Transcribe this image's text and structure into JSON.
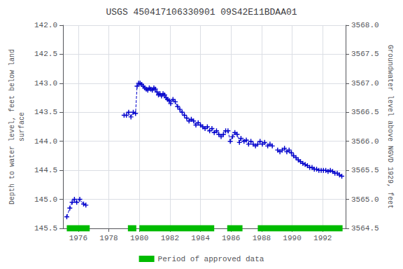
{
  "chart_data": {
    "type": "line",
    "title": "USGS 450417106330901 09S42E11BDAA01",
    "ylabel": "Depth to water level, feet below land\nsurface",
    "y2label": "Groundwater level above NGVD 1929, feet",
    "xlim": [
      1975.0,
      1993.5
    ],
    "xticks": [
      1976,
      1978,
      1980,
      1982,
      1984,
      1986,
      1988,
      1990,
      1992
    ],
    "ylim": [
      145.5,
      142.0
    ],
    "yticks": [
      {
        "value": 142.0,
        "label": "142.0"
      },
      142.5,
      {
        "value": 143.0,
        "label": "143.0"
      },
      143.5,
      {
        "value": 144.0,
        "label": "144.0"
      },
      144.5,
      {
        "value": 145.0,
        "label": "145.0"
      },
      145.5
    ],
    "y2lim": [
      3564.5,
      3568.0
    ],
    "y2ticks": [
      3564.5,
      {
        "value": 3565.0,
        "label": "3565.0"
      },
      3565.5,
      {
        "value": 3566.0,
        "label": "3566.0"
      },
      3566.5,
      {
        "value": 3567.0,
        "label": "3567.0"
      },
      3567.5,
      {
        "value": 3568.0,
        "label": "3568.0"
      }
    ],
    "grid": true,
    "legend": "bottom",
    "series": [
      {
        "type": "line",
        "color": "#0000cc",
        "marker": "+",
        "line_style": "dashed",
        "segments": [
          {
            "x": [
              1975.25,
              1975.45,
              1975.6,
              1975.75,
              1975.9,
              1976.1,
              1976.35,
              1976.5
            ],
            "values": [
              145.3,
              145.15,
              145.05,
              145.0,
              145.05,
              145.0,
              145.08,
              145.1
            ]
          },
          {
            "x": [
              1979.0,
              1979.15,
              1979.3,
              1979.45,
              1979.6,
              1979.75,
              1979.85,
              1979.95,
              1980.05,
              1980.15,
              1980.25,
              1980.35,
              1980.45,
              1980.55,
              1980.65,
              1980.75,
              1980.85,
              1980.95,
              1981.05,
              1981.15,
              1981.25,
              1981.35,
              1981.45,
              1981.55,
              1981.65,
              1981.75,
              1981.85,
              1981.95,
              1982.05,
              1982.2,
              1982.35,
              1982.5,
              1982.65,
              1982.8,
              1982.95,
              1983.1,
              1983.25,
              1983.4,
              1983.55,
              1983.7,
              1983.85,
              1984.0,
              1984.15,
              1984.3,
              1984.45,
              1984.6,
              1984.75,
              1984.9,
              1985.05,
              1985.2,
              1985.35,
              1985.5,
              1985.65,
              1985.8,
              1985.95,
              1986.1,
              1986.25,
              1986.4,
              1986.55,
              1986.65,
              1986.85,
              1987.0,
              1987.15,
              1987.3,
              1987.45,
              1987.6,
              1987.75,
              1987.9,
              1988.05,
              1988.2,
              1988.4,
              1988.55,
              1988.7
            ],
            "values": [
              143.55,
              143.55,
              143.5,
              143.58,
              143.5,
              143.52,
              143.05,
              143.0,
              143.0,
              143.02,
              143.05,
              143.08,
              143.1,
              143.12,
              143.08,
              143.1,
              143.12,
              143.08,
              143.1,
              143.15,
              143.2,
              143.18,
              143.22,
              143.18,
              143.2,
              143.25,
              143.28,
              143.3,
              143.35,
              143.28,
              143.32,
              143.4,
              143.45,
              143.5,
              143.55,
              143.6,
              143.65,
              143.62,
              143.65,
              143.72,
              143.68,
              143.72,
              143.75,
              143.78,
              143.75,
              143.82,
              143.78,
              143.85,
              143.82,
              143.88,
              143.92,
              143.88,
              143.82,
              143.82,
              144.0,
              143.92,
              143.85,
              143.88,
              144.02,
              143.95,
              144.0,
              143.98,
              144.05,
              144.0,
              144.05,
              144.08,
              144.05,
              144.0,
              144.05,
              144.02,
              144.08,
              144.05,
              144.08
            ]
          },
          {
            "x": [
              1989.05,
              1989.2,
              1989.35,
              1989.5,
              1989.65,
              1989.8,
              1989.95,
              1990.1,
              1990.25,
              1990.4,
              1990.55,
              1990.7,
              1990.85,
              1991.0,
              1991.15,
              1991.3,
              1991.45,
              1991.6,
              1991.75,
              1991.9,
              1992.05,
              1992.2,
              1992.35,
              1992.5,
              1992.65,
              1992.8,
              1992.95,
              1993.1,
              1993.25
            ],
            "values": [
              144.15,
              144.18,
              144.15,
              144.12,
              144.18,
              144.15,
              144.2,
              144.25,
              144.28,
              144.32,
              144.35,
              144.38,
              144.4,
              144.42,
              144.45,
              144.45,
              144.48,
              144.48,
              144.5,
              144.5,
              144.5,
              144.5,
              144.52,
              144.5,
              144.52,
              144.55,
              144.55,
              144.58,
              144.6
            ]
          }
        ]
      },
      {
        "name": "Period of approved data",
        "type": "period",
        "color": "#00bb00",
        "periods": [
          [
            1975.25,
            1976.75
          ],
          [
            1979.25,
            1979.8
          ],
          [
            1980.0,
            1984.9
          ],
          [
            1985.75,
            1986.75
          ],
          [
            1987.75,
            1993.3
          ]
        ],
        "level": 145.5
      }
    ]
  }
}
